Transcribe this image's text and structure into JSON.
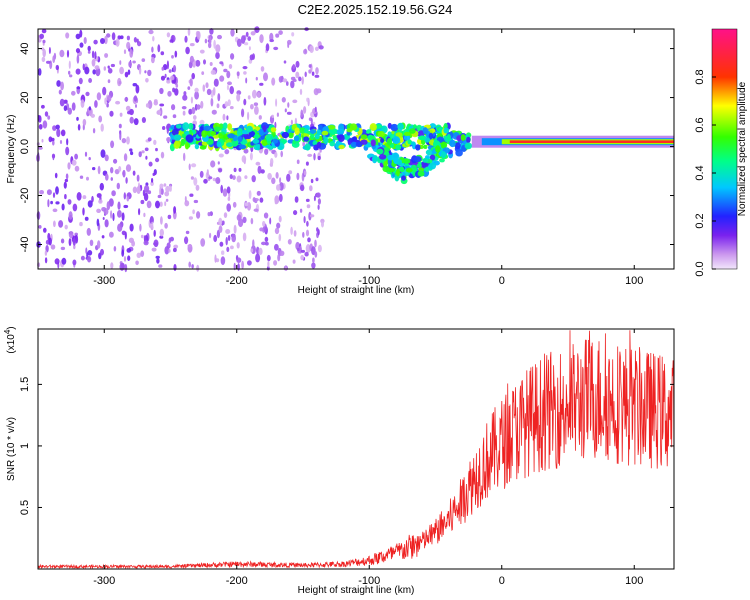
{
  "figure": {
    "title": "C2E2.2025.152.19.56.G24"
  },
  "chart_data": [
    {
      "type": "heatmap",
      "xlabel": "Height of straight line (km)",
      "ylabel": "Frequency (Hz)",
      "xlim": [
        -350,
        130
      ],
      "ylim": [
        -50,
        48
      ],
      "x_ticks": [
        -300,
        -200,
        -100,
        0,
        100
      ],
      "y_ticks": [
        -40,
        -20,
        0,
        20,
        40
      ],
      "colorbar": {
        "label": "Normalized spectral amplitude",
        "range": [
          0,
          1
        ],
        "ticks": [
          0.0,
          0.2,
          0.4,
          0.6,
          0.8
        ],
        "colormap": "rainbow (violet → blue → cyan → green → yellow → red → magenta)"
      },
      "features": [
        {
          "name": "broadband noise",
          "x_range": [
            -350,
            -245
          ],
          "y_range": [
            -50,
            48
          ],
          "amplitude": 0.1
        },
        {
          "name": "broadband noise",
          "x_range": [
            -240,
            -135
          ],
          "y_range": [
            -50,
            48
          ],
          "amplitude": 0.08
        },
        {
          "name": "signal band",
          "x_range": [
            -250,
            -40
          ],
          "frequency_hz": 4,
          "amplitude": 0.35
        },
        {
          "name": "dispersive dip",
          "x_range": [
            -100,
            -25
          ],
          "frequency_hz": -12,
          "amplitude": 0.3
        },
        {
          "name": "stable tone",
          "x_range": [
            0,
            130
          ],
          "frequency_hz": 2,
          "amplitude": 1.0
        }
      ]
    },
    {
      "type": "line",
      "xlabel": "Height of straight line (km)",
      "ylabel": "SNR (10 * v/v)",
      "y_multiplier": "(x10",
      "y_multiplier_exp": "4",
      "multiplier_close": ")",
      "xlim": [
        -350,
        130
      ],
      "ylim": [
        0,
        1.95
      ],
      "x_ticks": [
        -300,
        -200,
        -100,
        0,
        100
      ],
      "y_ticks": [
        0.5,
        1.0,
        1.5
      ],
      "series": [
        {
          "color": "#ee2222",
          "envelope": {
            "x": [
              -350,
              -250,
              -200,
              -150,
              -120,
              -100,
              -80,
              -60,
              -50,
              -40,
              -30,
              -20,
              -10,
              0,
              10,
              20,
              30,
              40,
              50,
              60,
              70,
              80,
              90,
              100,
              110,
              120,
              130
            ],
            "y": [
              0.02,
              0.02,
              0.04,
              0.03,
              0.04,
              0.07,
              0.13,
              0.22,
              0.3,
              0.4,
              0.55,
              0.75,
              0.9,
              1.02,
              1.12,
              1.2,
              1.26,
              1.3,
              1.33,
              1.37,
              1.4,
              1.38,
              1.35,
              1.32,
              1.3,
              1.28,
              1.25
            ]
          }
        }
      ]
    }
  ]
}
